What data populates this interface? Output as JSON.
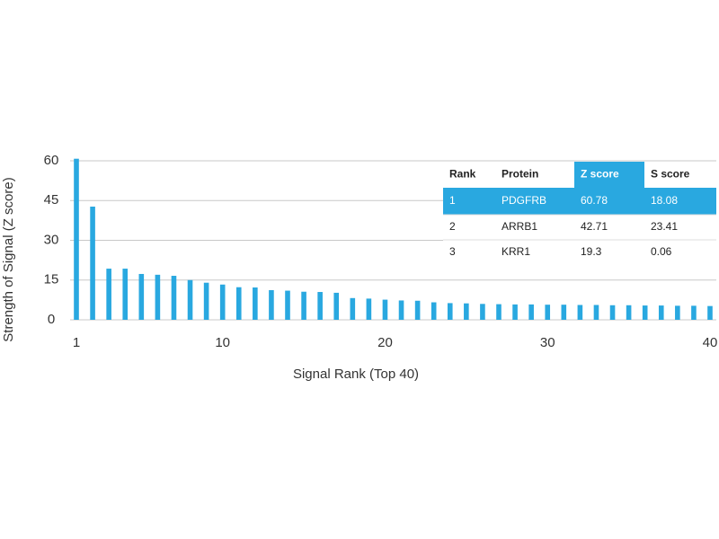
{
  "chart_data": {
    "type": "bar",
    "x_label": "Signal Rank (Top 40)",
    "y_label": "Strength of Signal (Z score)",
    "x": [
      1,
      2,
      3,
      4,
      5,
      6,
      7,
      8,
      9,
      10,
      11,
      12,
      13,
      14,
      15,
      16,
      17,
      18,
      19,
      20,
      21,
      22,
      23,
      24,
      25,
      26,
      27,
      28,
      29,
      30,
      31,
      32,
      33,
      34,
      35,
      36,
      37,
      38,
      39,
      40
    ],
    "values": [
      60.78,
      42.71,
      19.3,
      19.3,
      17.3,
      17,
      16.6,
      15,
      14,
      13.3,
      12.3,
      12.2,
      11.2,
      11,
      10.6,
      10.5,
      10.2,
      8.2,
      8,
      7.6,
      7.3,
      7.2,
      6.6,
      6.3,
      6.2,
      6,
      5.9,
      5.8,
      5.8,
      5.7,
      5.7,
      5.6,
      5.6,
      5.5,
      5.5,
      5.4,
      5.4,
      5.3,
      5.3,
      5.2
    ],
    "color": "#29a8e0",
    "xlim": [
      1,
      40
    ],
    "xticks": [
      1,
      10,
      20,
      30,
      40
    ],
    "ylim": [
      0,
      60
    ],
    "yticks": [
      0,
      15,
      30,
      45,
      60
    ],
    "grid": true
  },
  "table": {
    "columns": [
      "Rank",
      "Protein",
      "Z score",
      "S score"
    ],
    "rows": [
      [
        1,
        "PDGFRB",
        60.78,
        18.08
      ],
      [
        2,
        "ARRB1",
        42.71,
        23.41
      ],
      [
        3,
        "KRR1",
        19.3,
        0.06
      ]
    ]
  }
}
